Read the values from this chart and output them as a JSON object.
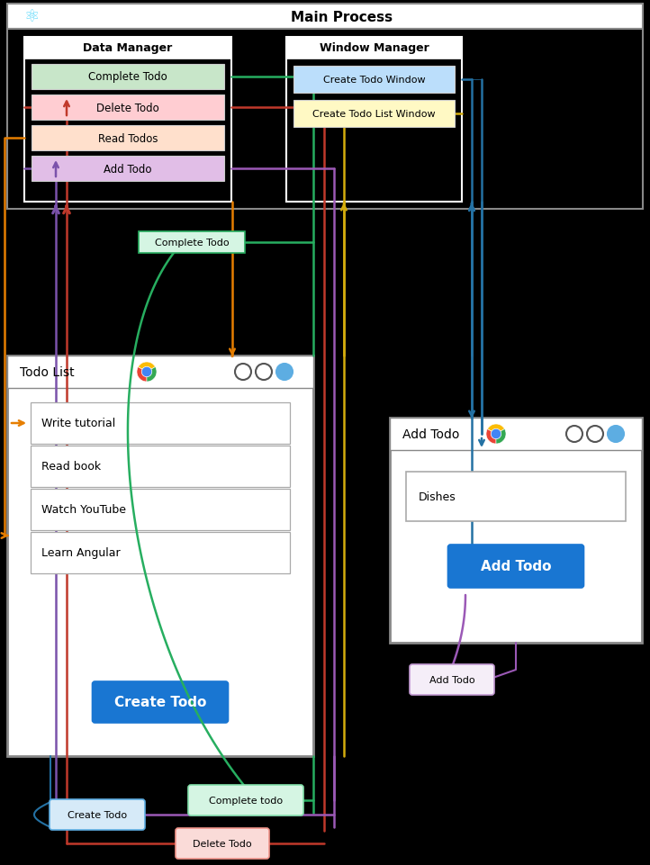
{
  "bg": "#000000",
  "main_title": "Main Process",
  "dm_title": "Data Manager",
  "dm_items": [
    {
      "label": "Complete Todo",
      "color": "#c8e6c9"
    },
    {
      "label": "Delete Todo",
      "color": "#ffcdd2"
    },
    {
      "label": "Read Todos",
      "color": "#ffe0cc"
    },
    {
      "label": "Add Todo",
      "color": "#e1bee7"
    }
  ],
  "wm_title": "Window Manager",
  "wm_items": [
    {
      "label": "Create Todo Window",
      "color": "#bbdefb"
    },
    {
      "label": "Create Todo List Window",
      "color": "#fff9c4"
    }
  ],
  "tl_title": "Todo List",
  "tl_items": [
    "Write tutorial",
    "Read book",
    "Watch YouTube",
    "Learn Angular"
  ],
  "tl_btn": "Create Todo",
  "at_title": "Add Todo",
  "at_input": "Dishes",
  "at_btn": "Add Todo",
  "mid_label": "Complete Todo",
  "bub_add": "Add Todo",
  "bub_create": "Create Todo",
  "bub_complete": "Complete todo",
  "bub_delete": "Delete Todo",
  "c_purple": "#7b52ab",
  "c_red": "#c0392b",
  "c_green": "#27ae60",
  "c_orange": "#e67e00",
  "c_blue": "#2471a3",
  "c_yellow": "#d4ac0d",
  "c_pink": "#c0392b",
  "c_teal": "#148f77",
  "c_btn": "#1976D2",
  "c_lblue": "#5dade2"
}
